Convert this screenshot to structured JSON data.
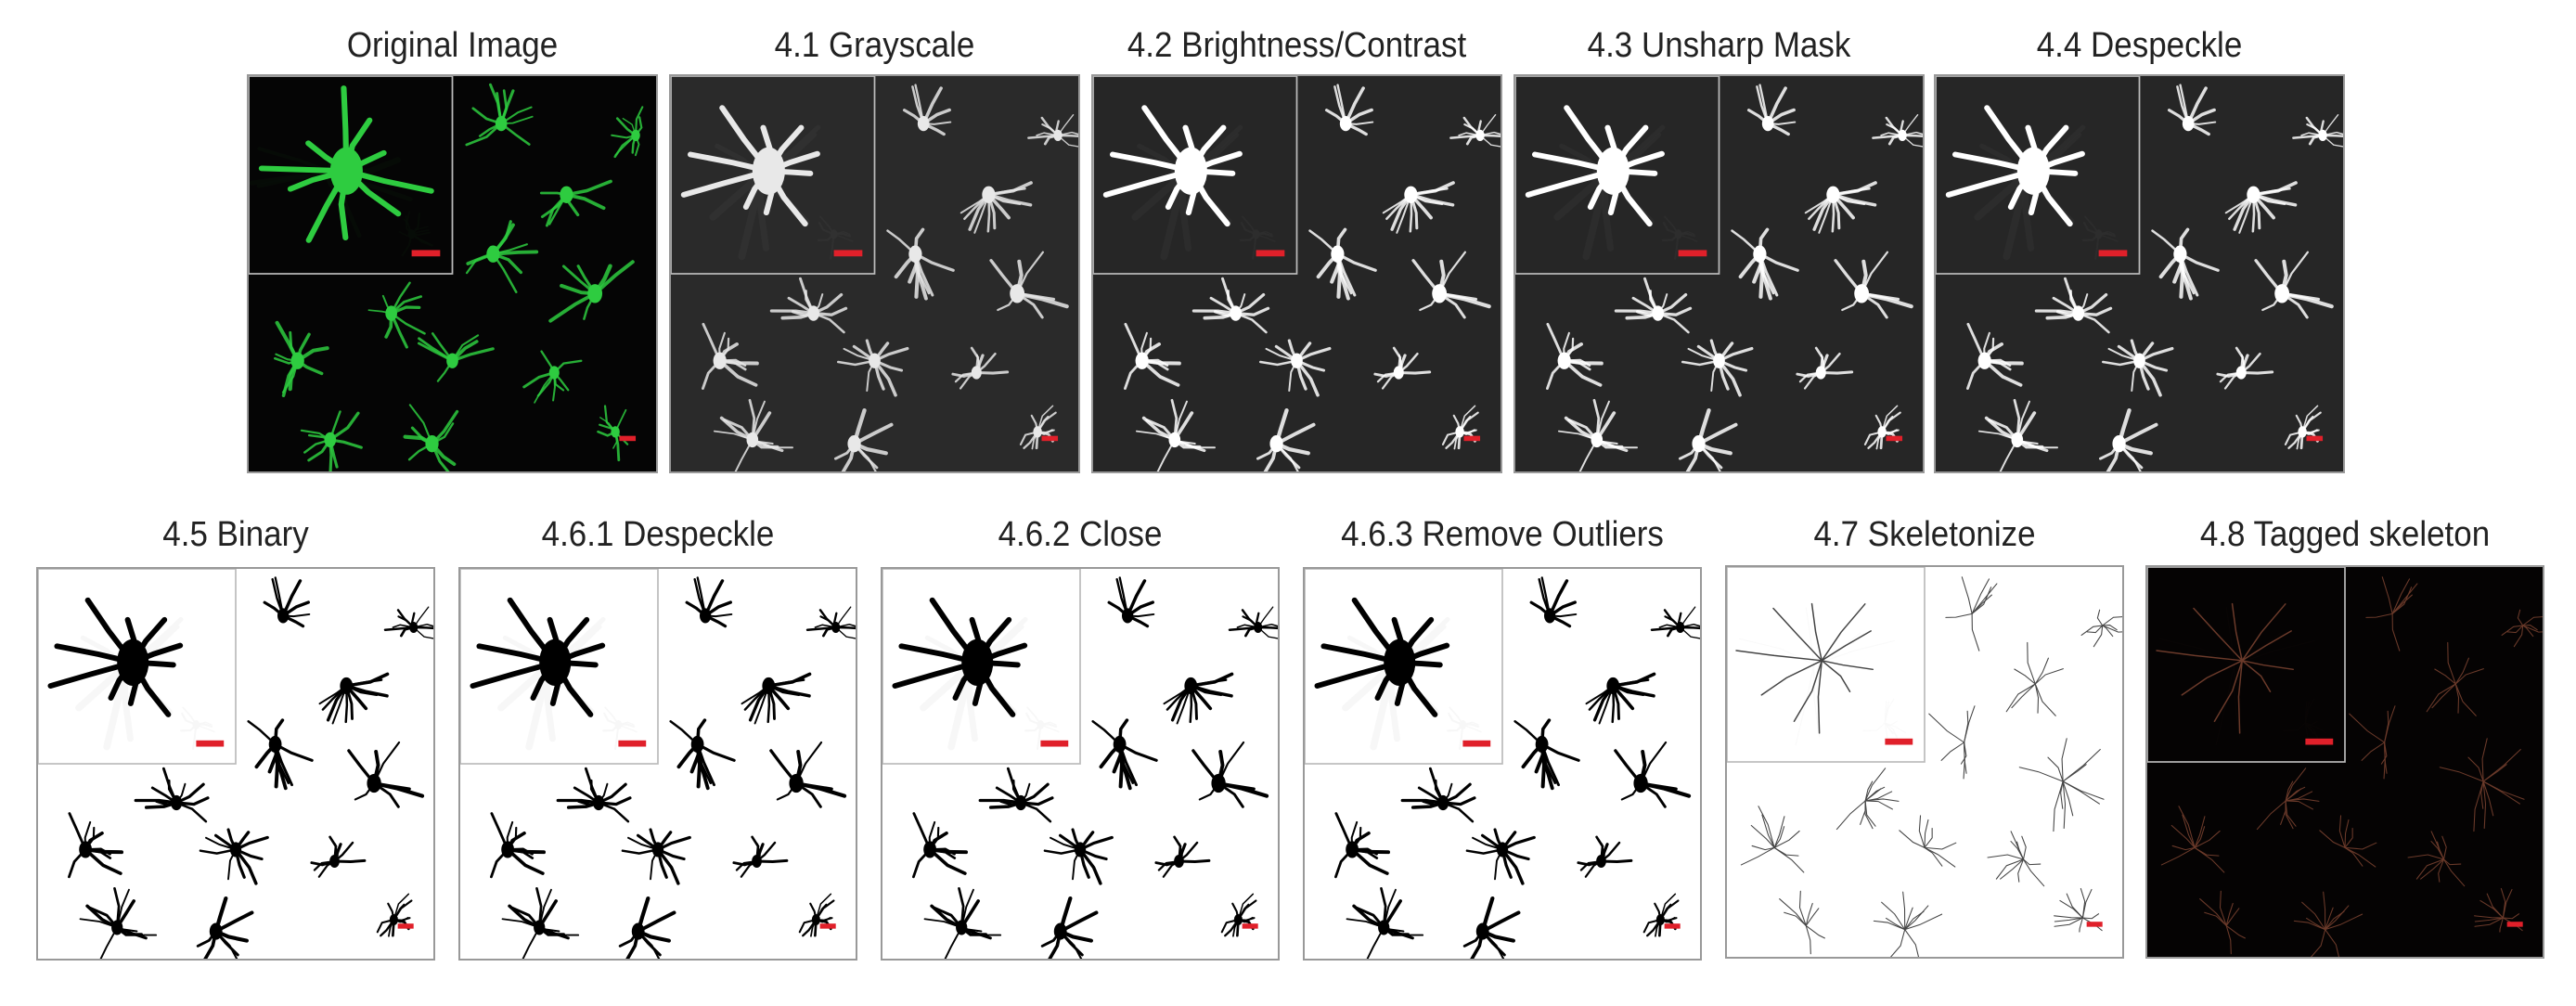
{
  "figure": {
    "panels": [
      {
        "label": "Original Image",
        "style": "green",
        "background": "#050505",
        "foreground": "#2ecc40"
      },
      {
        "label": "4.1 Grayscale",
        "style": "gray",
        "background": "#2a2a2a",
        "foreground": "#e8e8e8"
      },
      {
        "label": "4.2 Brightness/Contrast",
        "style": "gray",
        "background": "#262626",
        "foreground": "#ffffff"
      },
      {
        "label": "4.3 Unsharp Mask",
        "style": "gray",
        "background": "#262626",
        "foreground": "#ffffff"
      },
      {
        "label": "4.4 Despeckle",
        "style": "gray",
        "background": "#262626",
        "foreground": "#ffffff"
      },
      {
        "label": "4.5 Binary",
        "style": "binary",
        "background": "#ffffff",
        "foreground": "#000000"
      },
      {
        "label": "4.6.1 Despeckle",
        "style": "binary",
        "background": "#ffffff",
        "foreground": "#000000"
      },
      {
        "label": "4.6.2 Close",
        "style": "binary",
        "background": "#ffffff",
        "foreground": "#000000"
      },
      {
        "label": "4.6.3 Remove Outliers",
        "style": "binary",
        "background": "#ffffff",
        "foreground": "#000000"
      },
      {
        "label": "4.7 Skeletonize",
        "style": "skeleton",
        "background": "#ffffff",
        "foreground": "#444444"
      },
      {
        "label": "4.8 Tagged skeleton",
        "style": "tagged",
        "background": "#050303",
        "foreground": "#6b3a2a"
      }
    ],
    "scale_bar_color": "#e0202a",
    "inset_border_color": "#bbbbbb"
  }
}
